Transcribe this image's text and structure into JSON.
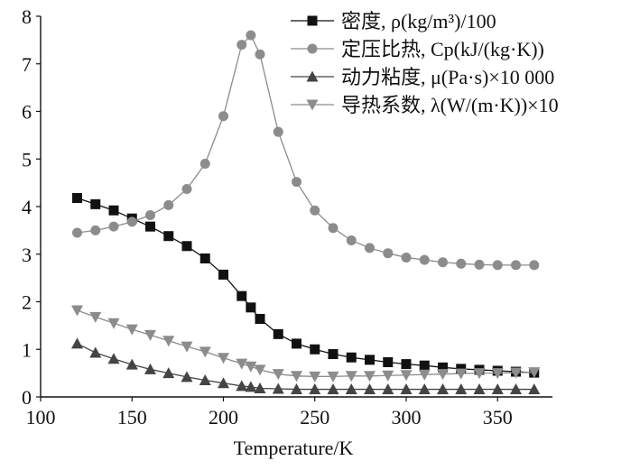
{
  "chart_data": {
    "type": "line",
    "xlabel": "Temperature/K",
    "ylabel": "",
    "xlim": [
      100,
      380
    ],
    "ylim": [
      0,
      8
    ],
    "xticks": [
      100,
      150,
      200,
      250,
      300,
      350
    ],
    "yticks": [
      0,
      1,
      2,
      3,
      4,
      5,
      6,
      7,
      8
    ],
    "xtick_labels": [
      "100",
      "150",
      "200",
      "250",
      "300",
      "350"
    ],
    "ytick_labels": [
      "0",
      "1",
      "2",
      "3",
      "4",
      "5",
      "6",
      "7",
      "8"
    ],
    "grid": false,
    "legend_position": "top-right",
    "series": [
      {
        "name": "密度, ρ(kg/m³)/100",
        "marker": "square",
        "color": "#111111",
        "x": [
          120,
          130,
          140,
          150,
          160,
          170,
          180,
          190,
          200,
          210,
          215,
          220,
          230,
          240,
          250,
          260,
          270,
          280,
          290,
          300,
          310,
          320,
          330,
          340,
          350,
          360,
          370
        ],
        "y": [
          4.18,
          4.05,
          3.92,
          3.75,
          3.58,
          3.38,
          3.17,
          2.91,
          2.57,
          2.12,
          1.88,
          1.64,
          1.32,
          1.12,
          1.0,
          0.9,
          0.83,
          0.78,
          0.73,
          0.69,
          0.66,
          0.62,
          0.59,
          0.57,
          0.55,
          0.53,
          0.51
        ]
      },
      {
        "name": "定压比热, Cp(kJ/(kg·K))",
        "marker": "circle",
        "color": "#8c8c8c",
        "x": [
          120,
          130,
          140,
          150,
          160,
          170,
          180,
          190,
          200,
          210,
          215,
          220,
          230,
          240,
          250,
          260,
          270,
          280,
          290,
          300,
          310,
          320,
          330,
          340,
          350,
          360,
          370
        ],
        "y": [
          3.45,
          3.5,
          3.58,
          3.68,
          3.82,
          4.03,
          4.37,
          4.9,
          5.9,
          7.4,
          7.6,
          7.2,
          5.57,
          4.52,
          3.92,
          3.55,
          3.29,
          3.13,
          3.02,
          2.93,
          2.88,
          2.83,
          2.8,
          2.78,
          2.77,
          2.77,
          2.77
        ]
      },
      {
        "name": "动力粘度, μ(Pa·s)×10 000",
        "marker": "triangle-up",
        "color": "#444444",
        "x": [
          120,
          130,
          140,
          150,
          160,
          170,
          180,
          190,
          200,
          210,
          215,
          220,
          230,
          240,
          250,
          260,
          270,
          280,
          290,
          300,
          310,
          320,
          330,
          340,
          350,
          360,
          370
        ],
        "y": [
          1.12,
          0.93,
          0.8,
          0.68,
          0.58,
          0.5,
          0.42,
          0.35,
          0.29,
          0.23,
          0.21,
          0.18,
          0.17,
          0.16,
          0.16,
          0.16,
          0.16,
          0.16,
          0.16,
          0.16,
          0.16,
          0.16,
          0.16,
          0.16,
          0.16,
          0.16,
          0.16
        ]
      },
      {
        "name": "导热系数, λ(W/(m·K))×10",
        "marker": "triangle-down",
        "color": "#8c8c8c",
        "x": [
          120,
          130,
          140,
          150,
          160,
          170,
          180,
          190,
          200,
          210,
          215,
          220,
          230,
          240,
          250,
          260,
          270,
          280,
          290,
          300,
          310,
          320,
          330,
          340,
          350,
          360,
          370
        ],
        "y": [
          1.82,
          1.68,
          1.55,
          1.42,
          1.3,
          1.18,
          1.06,
          0.95,
          0.82,
          0.7,
          0.64,
          0.57,
          0.48,
          0.44,
          0.43,
          0.43,
          0.44,
          0.44,
          0.45,
          0.46,
          0.47,
          0.48,
          0.49,
          0.5,
          0.5,
          0.51,
          0.52
        ]
      }
    ]
  }
}
